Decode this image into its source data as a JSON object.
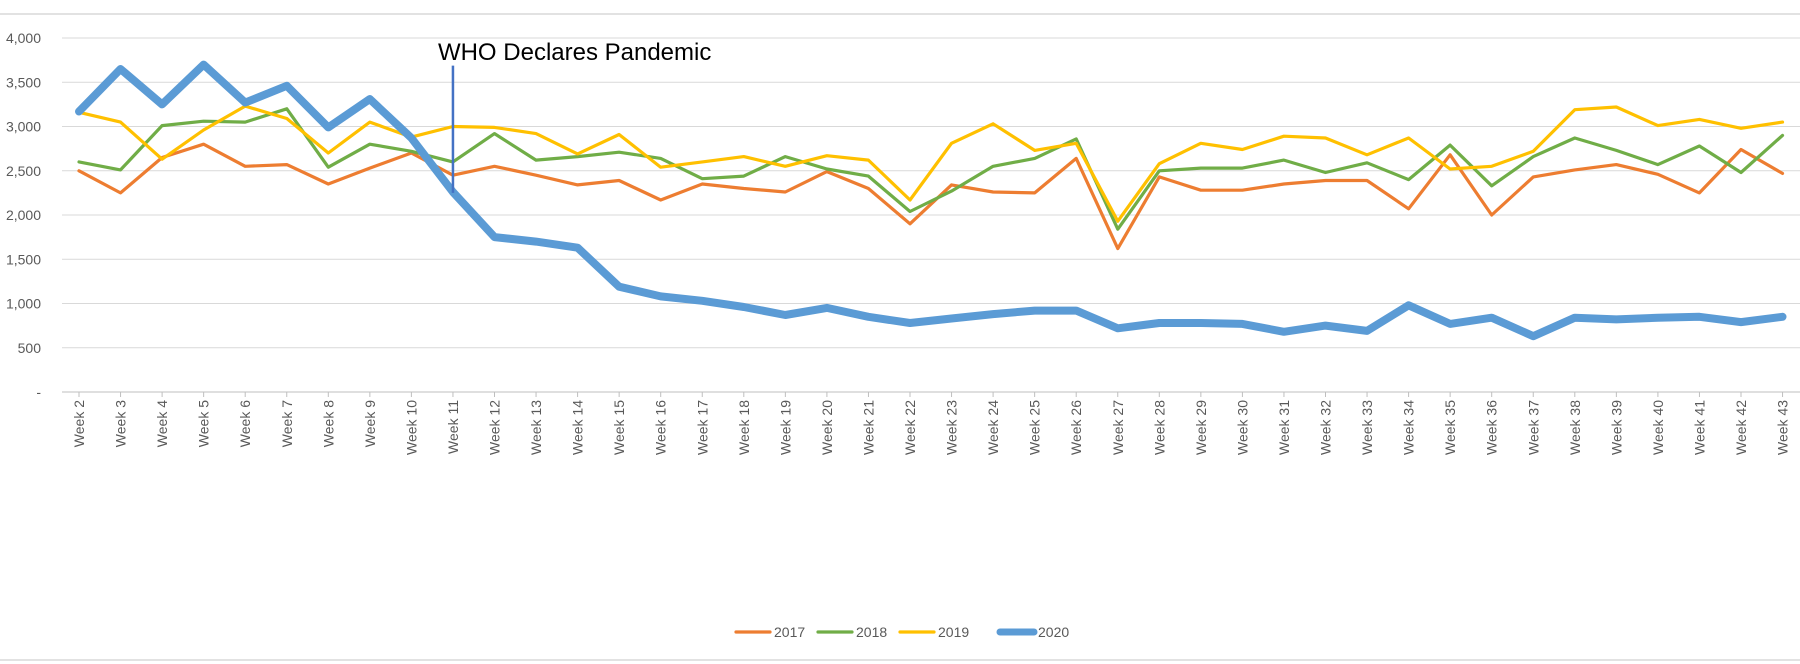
{
  "chart_data": {
    "type": "line",
    "title": "",
    "xlabel": "",
    "ylabel": "",
    "ylim": [
      0,
      4000
    ],
    "y_ticks": [
      {
        "value": 0,
        "label": "-"
      },
      {
        "value": 500,
        "label": "500"
      },
      {
        "value": 1000,
        "label": "1,000"
      },
      {
        "value": 1500,
        "label": "1,500"
      },
      {
        "value": 2000,
        "label": "2,000"
      },
      {
        "value": 2500,
        "label": "2,500"
      },
      {
        "value": 3000,
        "label": "3,000"
      },
      {
        "value": 3500,
        "label": "3,500"
      },
      {
        "value": 4000,
        "label": "4,000"
      }
    ],
    "grid": true,
    "legend_position": "bottom",
    "categories": [
      "Week 2",
      "Week 3",
      "Week 4",
      "Week 5",
      "Week 6",
      "Week 7",
      "Week 8",
      "Week 9",
      "Week 10",
      "Week 11",
      "Week 12",
      "Week 13",
      "Week 14",
      "Week 15",
      "Week 16",
      "Week 17",
      "Week 18",
      "Week 19",
      "Week 20",
      "Week 21",
      "Week 22",
      "Week 23",
      "Week 24",
      "Week 25",
      "Week 26",
      "Week 27",
      "Week 28",
      "Week 29",
      "Week 30",
      "Week 31",
      "Week 32",
      "Week 33",
      "Week 34",
      "Week 35",
      "Week 36",
      "Week 37",
      "Week 38",
      "Week 39",
      "Week 40",
      "Week 41",
      "Week 42",
      "Week 43"
    ],
    "series": [
      {
        "name": "2017",
        "color": "#ED7D31",
        "values": [
          2500,
          2250,
          2650,
          2800,
          2550,
          2570,
          2350,
          2530,
          2700,
          2450,
          2550,
          2450,
          2340,
          2390,
          2170,
          2350,
          2300,
          2260,
          2490,
          2300,
          1900,
          2340,
          2260,
          2250,
          2640,
          1620,
          2430,
          2280,
          2280,
          2350,
          2390,
          2390,
          2070,
          2680,
          2000,
          2430,
          2510,
          2570,
          2460,
          2250,
          2740,
          2470
        ]
      },
      {
        "name": "2018",
        "color": "#70AD47",
        "values": [
          2600,
          2510,
          3010,
          3060,
          3050,
          3200,
          2540,
          2800,
          2720,
          2600,
          2920,
          2620,
          2660,
          2710,
          2640,
          2410,
          2440,
          2660,
          2520,
          2440,
          2040,
          2270,
          2550,
          2640,
          2860,
          1840,
          2500,
          2530,
          2530,
          2620,
          2480,
          2590,
          2400,
          2790,
          2330,
          2660,
          2870,
          2730,
          2570,
          2780,
          2480,
          2900
        ]
      },
      {
        "name": "2019",
        "color": "#FFC000",
        "values": [
          3160,
          3050,
          2630,
          2960,
          3230,
          3090,
          2700,
          3050,
          2880,
          3000,
          2990,
          2920,
          2690,
          2910,
          2540,
          2600,
          2660,
          2550,
          2670,
          2620,
          2170,
          2810,
          3030,
          2730,
          2810,
          1930,
          2580,
          2810,
          2740,
          2890,
          2870,
          2680,
          2870,
          2520,
          2550,
          2720,
          3190,
          3220,
          3010,
          3080,
          2980,
          3050
        ]
      },
      {
        "name": "2020",
        "color": "#5B9BD5",
        "values": [
          3170,
          3650,
          3250,
          3700,
          3270,
          3460,
          2990,
          3310,
          2870,
          2260,
          1750,
          1700,
          1630,
          1190,
          1080,
          1030,
          960,
          870,
          950,
          850,
          780,
          830,
          880,
          920,
          920,
          720,
          780,
          780,
          770,
          680,
          750,
          690,
          980,
          770,
          840,
          630,
          840,
          820,
          840,
          850,
          790,
          850
        ]
      }
    ],
    "annotations": [
      {
        "text": "WHO Declares Pandemic",
        "x": "Week 11",
        "y_from": 2250,
        "y_to": 3620,
        "color": "#4472C4"
      }
    ]
  }
}
